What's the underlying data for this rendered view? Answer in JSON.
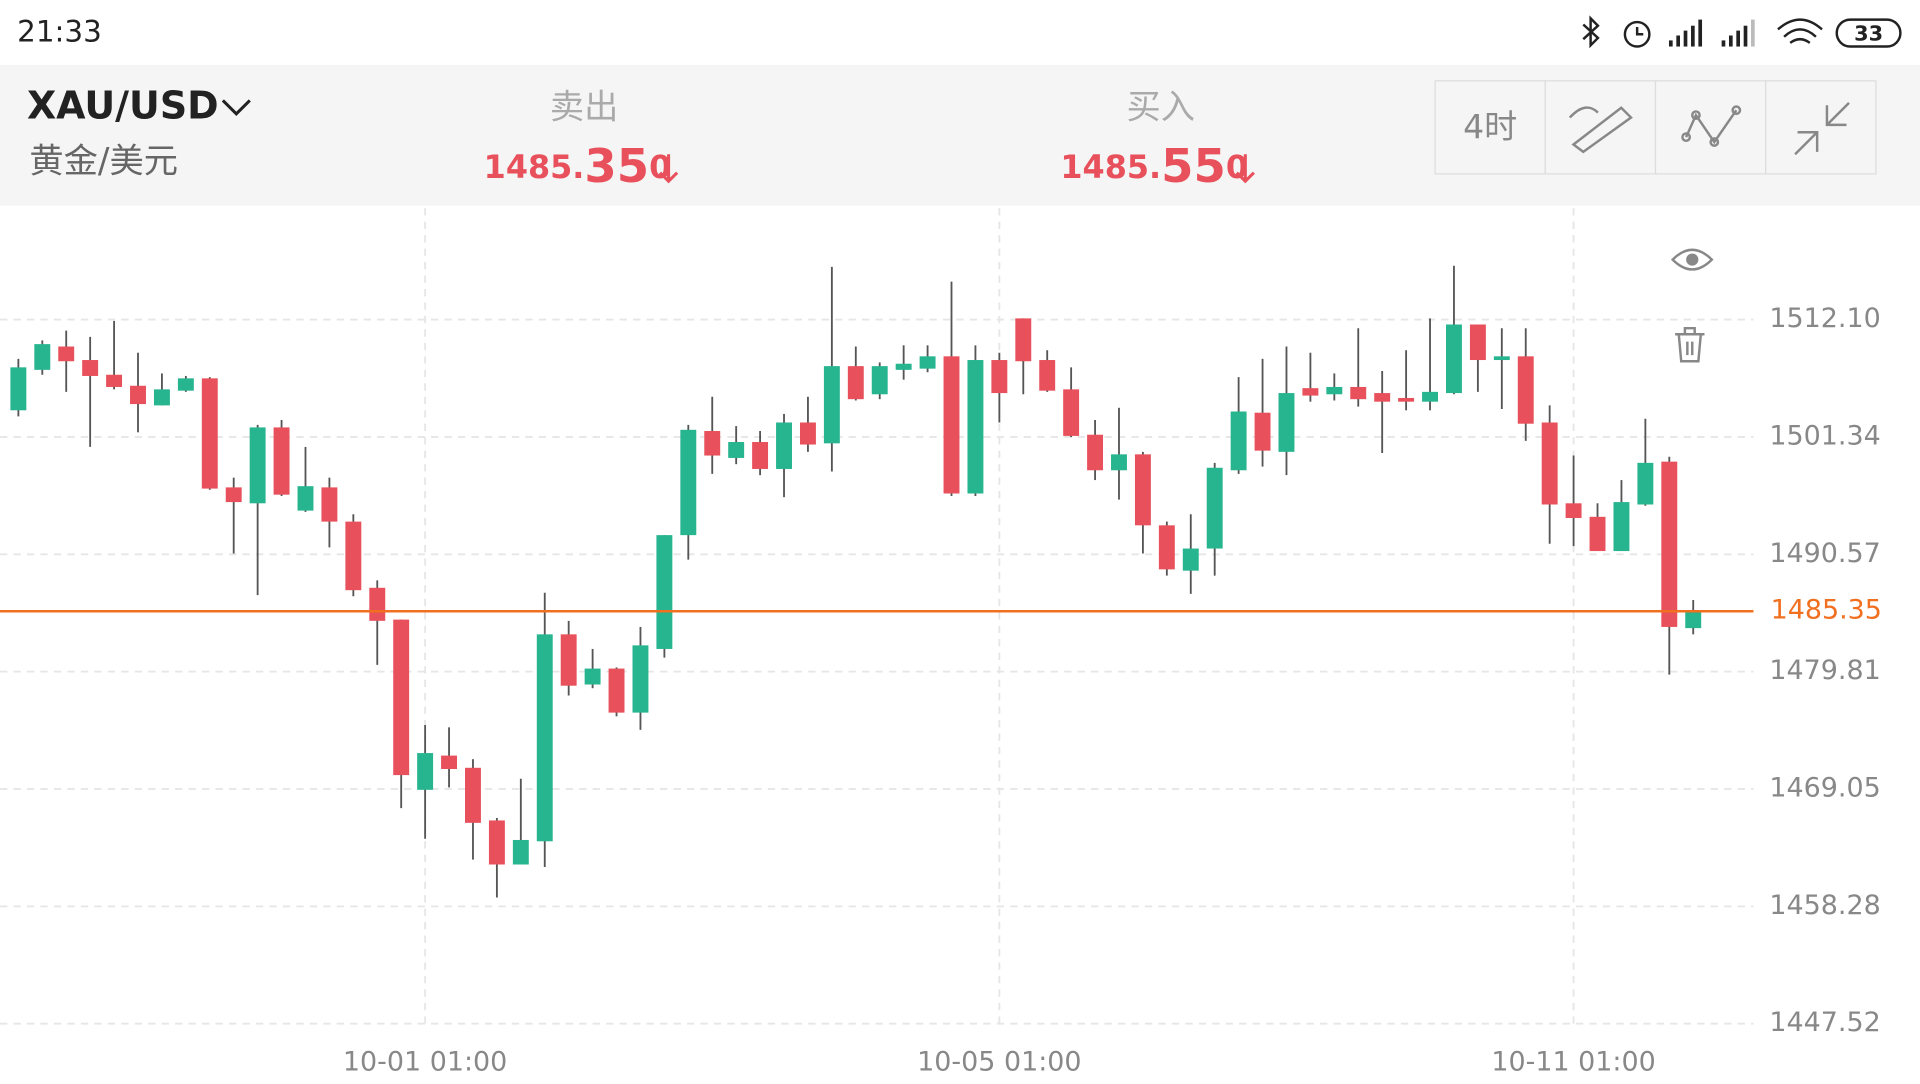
{
  "status_bar": {
    "time": "21:33",
    "battery": "33"
  },
  "header": {
    "symbol": "XAU/USD",
    "name": "黄金/美元",
    "sell": {
      "label": "卖出",
      "price_head": "1485.",
      "price_big": "35",
      "price_tail": "0"
    },
    "buy": {
      "label": "买入",
      "price_head": "1485.",
      "price_big": "55",
      "price_tail": "0"
    },
    "timeframe": "4时"
  },
  "chart_data": {
    "type": "candlestick",
    "categories": [
      null,
      null,
      null,
      null,
      null,
      null,
      null,
      null,
      null,
      null,
      null,
      null,
      null,
      null,
      null,
      null,
      null,
      "10-01 01:00",
      null,
      null,
      null,
      null,
      null,
      null,
      null,
      null,
      null,
      null,
      null,
      null,
      null,
      null,
      null,
      null,
      null,
      null,
      null,
      null,
      null,
      null,
      null,
      "10-05 01:00",
      null,
      null,
      null,
      null,
      null,
      null,
      null,
      null,
      null,
      null,
      null,
      null,
      null,
      null,
      null,
      null,
      null,
      null,
      null,
      null,
      null,
      null,
      null,
      "10-11 01:00",
      null,
      null,
      null,
      null,
      null
    ],
    "open": [
      1503.78,
      1507.49,
      1509.63,
      1508.39,
      1507.04,
      1506.03,
      1504.23,
      1505.58,
      1506.71,
      1496.71,
      1495.25,
      1502.21,
      1494.58,
      1496.71,
      1493.57,
      1487.5,
      1484.58,
      1468.97,
      1472.11,
      1470.99,
      1466.16,
      1462.12,
      1464.25,
      1483.23,
      1478.63,
      1480.09,
      1476.05,
      1481.89,
      1492.33,
      1501.88,
      1499.41,
      1500.87,
      1498.4,
      1502.66,
      1500.75,
      1507.83,
      1505.25,
      1507.49,
      1507.6,
      1508.73,
      1496.15,
      1508.39,
      1512.21,
      1508.39,
      1505.7,
      1501.54,
      1498.28,
      1499.74,
      1493.23,
      1489.07,
      1491.1,
      1498.28,
      1503.56,
      1499.97,
      1505.81,
      1505.25,
      1505.92,
      1505.36,
      1504.91,
      1504.57,
      1505.36,
      1511.65,
      1508.39,
      1508.73,
      1502.66,
      1495.25,
      1494.01,
      1490.87,
      1495.14,
      1499.07,
      1483.8
    ],
    "high": [
      1508.5,
      1510.19,
      1511.09,
      1510.52,
      1511.98,
      1509.06,
      1507.16,
      1506.93,
      1506.82,
      1497.61,
      1502.44,
      1502.89,
      1500.42,
      1497.61,
      1494.24,
      1488.18,
      1484.58,
      1474.92,
      1474.7,
      1471.78,
      1466.39,
      1469.98,
      1487.05,
      1484.47,
      1481.89,
      1480.2,
      1483.91,
      1492.33,
      1502.44,
      1505.02,
      1502.33,
      1501.88,
      1503.45,
      1505.02,
      1516.93,
      1509.63,
      1508.17,
      1509.74,
      1509.74,
      1515.58,
      1509.74,
      1509.06,
      1512.21,
      1509.29,
      1507.72,
      1502.89,
      1504.01,
      1499.97,
      1493.57,
      1494.24,
      1498.96,
      1506.82,
      1508.5,
      1509.63,
      1509.06,
      1507.16,
      1511.31,
      1507.38,
      1509.29,
      1512.21,
      1517.04,
      1511.65,
      1511.31,
      1511.31,
      1504.23,
      1499.63,
      1495.25,
      1497.38,
      1503.0,
      1499.52,
      1486.38
    ],
    "low": [
      1503.22,
      1507.04,
      1505.47,
      1500.42,
      1505.7,
      1501.76,
      1504.23,
      1505.47,
      1496.49,
      1490.65,
      1486.83,
      1495.92,
      1494.46,
      1491.21,
      1486.72,
      1480.43,
      1467.29,
      1464.48,
      1469.19,
      1462.57,
      1459.09,
      1462.12,
      1461.89,
      1477.62,
      1478.29,
      1475.71,
      1474.47,
      1481.1,
      1490.08,
      1497.95,
      1498.84,
      1497.83,
      1495.81,
      1499.97,
      1498.17,
      1504.68,
      1504.8,
      1506.59,
      1507.27,
      1495.92,
      1495.92,
      1502.66,
      1505.25,
      1505.47,
      1501.32,
      1497.38,
      1495.59,
      1490.65,
      1488.62,
      1486.94,
      1488.62,
      1497.95,
      1498.62,
      1497.83,
      1504.57,
      1504.68,
      1504.12,
      1499.86,
      1503.78,
      1503.78,
      1505.25,
      1505.47,
      1503.9,
      1500.98,
      1491.54,
      1491.32,
      1490.87,
      1490.87,
      1495.03,
      1479.53,
      1483.23
    ],
    "close": [
      1507.72,
      1509.85,
      1508.28,
      1506.93,
      1505.92,
      1504.35,
      1505.7,
      1506.71,
      1496.6,
      1495.36,
      1502.21,
      1496.04,
      1496.82,
      1493.57,
      1487.28,
      1484.47,
      1470.32,
      1472.34,
      1470.88,
      1465.94,
      1462.12,
      1464.37,
      1483.23,
      1478.52,
      1480.09,
      1476.05,
      1482.22,
      1492.33,
      1501.99,
      1499.63,
      1500.87,
      1498.4,
      1502.66,
      1500.64,
      1507.83,
      1504.8,
      1507.83,
      1508.05,
      1508.73,
      1496.15,
      1508.39,
      1505.36,
      1508.28,
      1505.58,
      1501.43,
      1498.28,
      1499.74,
      1493.23,
      1489.19,
      1491.1,
      1498.51,
      1503.67,
      1500.08,
      1505.36,
      1505.13,
      1505.92,
      1504.8,
      1504.57,
      1504.57,
      1505.47,
      1511.65,
      1508.39,
      1508.73,
      1502.55,
      1495.14,
      1493.9,
      1490.87,
      1495.36,
      1498.96,
      1483.91,
      1485.35
    ],
    "up_color": "#26b58f",
    "down_color": "#e8505b",
    "ylim": [
      1447.52,
      1522.32
    ],
    "yticks": [
      {
        "value": 1512.1,
        "label": "1512.10"
      },
      1501.34,
      1490.57,
      1479.81,
      1469.05,
      1458.28,
      1447.52
    ],
    "grid": true,
    "last_price": 1485.35,
    "last_price_color": "#f07020"
  }
}
